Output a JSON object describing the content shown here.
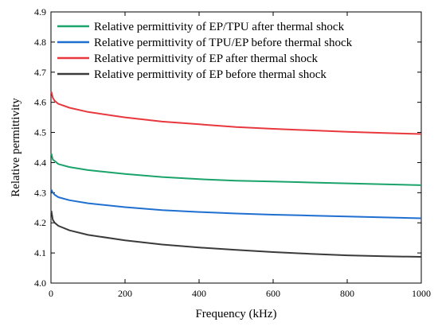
{
  "chart_data": {
    "type": "line",
    "title": "",
    "xlabel": "Frequency (kHz)",
    "ylabel": "Relative permittivity",
    "xlim": [
      0,
      1000
    ],
    "ylim": [
      4.0,
      4.9
    ],
    "xticks": [
      0,
      200,
      400,
      600,
      800,
      1000
    ],
    "yticks": [
      4.0,
      4.1,
      4.2,
      4.3,
      4.4,
      4.5,
      4.6,
      4.7,
      4.8,
      4.9
    ],
    "grid": false,
    "legend_position": "top-right",
    "series": [
      {
        "name": "Relative permittivity of EP/TPU after thermal shock",
        "color": "#1aa36a",
        "x": [
          1,
          5,
          10,
          20,
          50,
          100,
          200,
          300,
          400,
          500,
          600,
          700,
          800,
          900,
          1000
        ],
        "y": [
          4.43,
          4.41,
          4.405,
          4.395,
          4.385,
          4.375,
          4.362,
          4.352,
          4.345,
          4.34,
          4.337,
          4.334,
          4.331,
          4.328,
          4.325
        ]
      },
      {
        "name": "Relative permittivity of TPU/EP before thermal shock",
        "color": "#1f6fd1",
        "x": [
          1,
          5,
          10,
          20,
          50,
          100,
          200,
          300,
          400,
          500,
          600,
          700,
          800,
          900,
          1000
        ],
        "y": [
          4.31,
          4.3,
          4.293,
          4.285,
          4.275,
          4.265,
          4.252,
          4.242,
          4.236,
          4.231,
          4.227,
          4.224,
          4.221,
          4.218,
          4.215
        ]
      },
      {
        "name": "Relative permittivity of EP after thermal shock",
        "color": "#e8383d",
        "x": [
          1,
          5,
          10,
          20,
          50,
          100,
          200,
          300,
          400,
          500,
          600,
          700,
          800,
          900,
          1000
        ],
        "y": [
          4.635,
          4.615,
          4.605,
          4.595,
          4.582,
          4.568,
          4.55,
          4.536,
          4.527,
          4.518,
          4.512,
          4.507,
          4.502,
          4.498,
          4.495
        ]
      },
      {
        "name": "Relative permittivity of EP before thermal shock",
        "color": "#3a3a3a",
        "x": [
          1,
          5,
          10,
          20,
          50,
          100,
          200,
          300,
          400,
          500,
          600,
          700,
          800,
          900,
          1000
        ],
        "y": [
          4.24,
          4.21,
          4.2,
          4.19,
          4.175,
          4.16,
          4.142,
          4.128,
          4.118,
          4.11,
          4.103,
          4.097,
          4.092,
          4.089,
          4.087
        ]
      }
    ]
  }
}
